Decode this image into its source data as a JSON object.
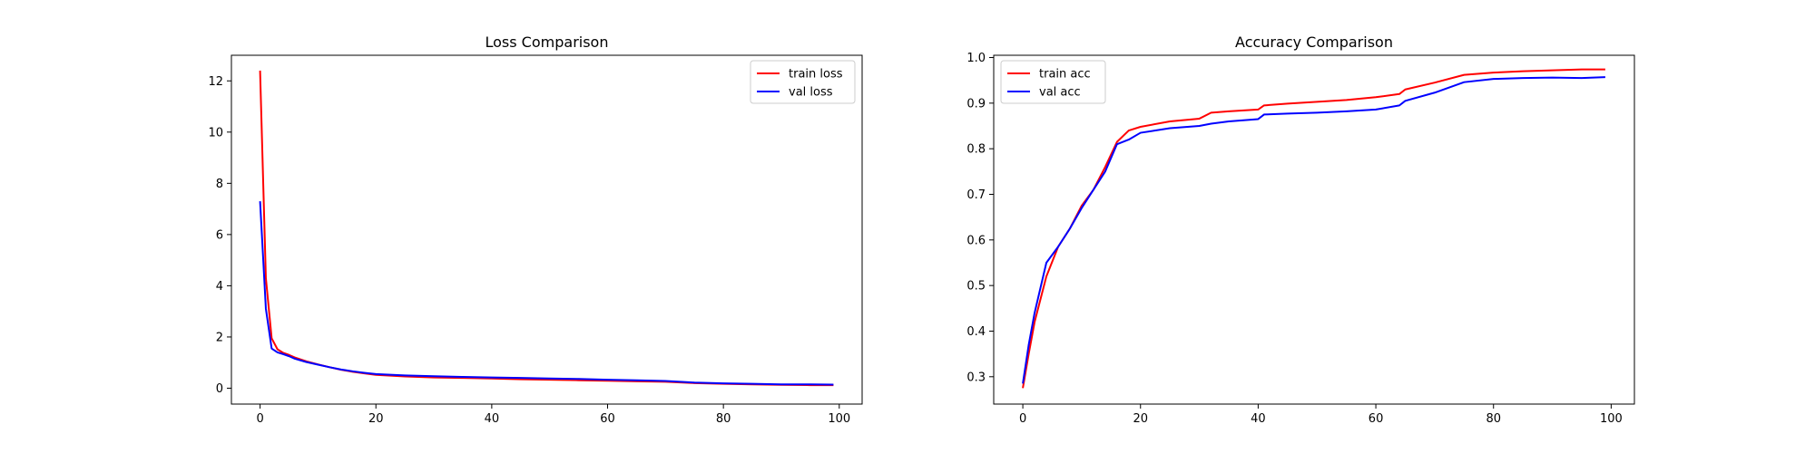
{
  "chart_data": [
    {
      "type": "line",
      "title": "Loss Comparison",
      "xlabel": "",
      "ylabel": "",
      "xlim": [
        -4.95,
        103.95
      ],
      "ylim": [
        -0.62,
        13.0
      ],
      "xticks": [
        0,
        20,
        40,
        60,
        80,
        100
      ],
      "yticks": [
        0,
        2,
        4,
        6,
        8,
        10,
        12
      ],
      "grid": false,
      "legend": "top-right",
      "series": [
        {
          "name": "train loss",
          "color": "#ff0000",
          "x": [
            0,
            1,
            2,
            3,
            4,
            5,
            6,
            8,
            10,
            12,
            14,
            16,
            18,
            20,
            25,
            30,
            35,
            40,
            45,
            50,
            55,
            60,
            65,
            70,
            75,
            80,
            85,
            90,
            95,
            99
          ],
          "y": [
            12.4,
            4.3,
            1.95,
            1.52,
            1.38,
            1.3,
            1.2,
            1.05,
            0.93,
            0.82,
            0.72,
            0.64,
            0.58,
            0.52,
            0.46,
            0.42,
            0.4,
            0.38,
            0.35,
            0.33,
            0.31,
            0.29,
            0.27,
            0.25,
            0.2,
            0.17,
            0.15,
            0.13,
            0.12,
            0.12
          ]
        },
        {
          "name": "val loss",
          "color": "#0000ff",
          "x": [
            0,
            1,
            2,
            3,
            4,
            5,
            6,
            8,
            10,
            12,
            14,
            16,
            18,
            20,
            25,
            30,
            35,
            40,
            45,
            50,
            55,
            60,
            65,
            70,
            75,
            80,
            85,
            90,
            95,
            99
          ],
          "y": [
            7.3,
            3.1,
            1.55,
            1.4,
            1.33,
            1.25,
            1.15,
            1.02,
            0.92,
            0.82,
            0.73,
            0.66,
            0.6,
            0.55,
            0.5,
            0.47,
            0.44,
            0.42,
            0.4,
            0.38,
            0.36,
            0.33,
            0.31,
            0.28,
            0.22,
            0.19,
            0.17,
            0.15,
            0.15,
            0.14
          ]
        }
      ]
    },
    {
      "type": "line",
      "title": "Accuracy Comparison",
      "xlabel": "",
      "ylabel": "",
      "xlim": [
        -4.95,
        103.95
      ],
      "ylim": [
        0.24,
        1.005
      ],
      "xticks": [
        0,
        20,
        40,
        60,
        80,
        100
      ],
      "yticks": [
        0.3,
        0.4,
        0.5,
        0.6,
        0.7,
        0.8,
        0.9,
        1.0
      ],
      "grid": false,
      "legend": "top-left",
      "series": [
        {
          "name": "train acc",
          "color": "#ff0000",
          "x": [
            0,
            1,
            2,
            4,
            6,
            8,
            10,
            12,
            14,
            16,
            18,
            20,
            25,
            30,
            32,
            35,
            40,
            41,
            45,
            50,
            55,
            60,
            64,
            65,
            70,
            75,
            80,
            85,
            90,
            95,
            99
          ],
          "y": [
            0.275,
            0.35,
            0.42,
            0.52,
            0.585,
            0.625,
            0.675,
            0.71,
            0.76,
            0.815,
            0.84,
            0.848,
            0.86,
            0.866,
            0.879,
            0.882,
            0.886,
            0.895,
            0.899,
            0.903,
            0.907,
            0.913,
            0.92,
            0.93,
            0.945,
            0.962,
            0.967,
            0.97,
            0.972,
            0.974,
            0.974
          ]
        },
        {
          "name": "val acc",
          "color": "#0000ff",
          "x": [
            0,
            1,
            2,
            4,
            6,
            8,
            10,
            12,
            14,
            16,
            18,
            20,
            25,
            30,
            32,
            35,
            40,
            41,
            45,
            50,
            55,
            60,
            64,
            65,
            70,
            75,
            80,
            85,
            90,
            95,
            99
          ],
          "y": [
            0.285,
            0.37,
            0.44,
            0.55,
            0.585,
            0.625,
            0.67,
            0.71,
            0.75,
            0.81,
            0.82,
            0.835,
            0.845,
            0.85,
            0.855,
            0.86,
            0.865,
            0.875,
            0.877,
            0.879,
            0.882,
            0.886,
            0.895,
            0.905,
            0.923,
            0.946,
            0.953,
            0.955,
            0.956,
            0.955,
            0.957
          ]
        }
      ]
    }
  ]
}
